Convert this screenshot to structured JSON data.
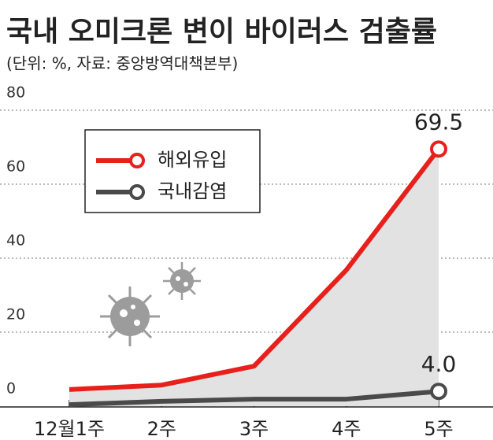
{
  "chart_data": {
    "type": "line",
    "title": "국내 오미크론 변이 바이러스 검출률",
    "subtitle": "(단위: %, 자료: 중앙방역대책본부)",
    "categories": [
      "12월1주",
      "2주",
      "3주",
      "4주",
      "5주"
    ],
    "series": [
      {
        "name": "해외유입",
        "color": "#e8201c",
        "values": [
          4.5,
          5.7,
          10.8,
          36.8,
          69.5
        ],
        "value_labels": [
          null,
          null,
          null,
          null,
          "69.5"
        ]
      },
      {
        "name": "국내감염",
        "color": "#4a4a4a",
        "values": [
          0.4,
          1.3,
          1.9,
          1.9,
          4.0
        ],
        "value_labels": [
          null,
          null,
          null,
          null,
          "4.0"
        ]
      }
    ],
    "ylim": [
      0,
      80
    ],
    "yticks": [
      0,
      20,
      40,
      60,
      80
    ],
    "grid": true,
    "legend": "upper-left"
  }
}
